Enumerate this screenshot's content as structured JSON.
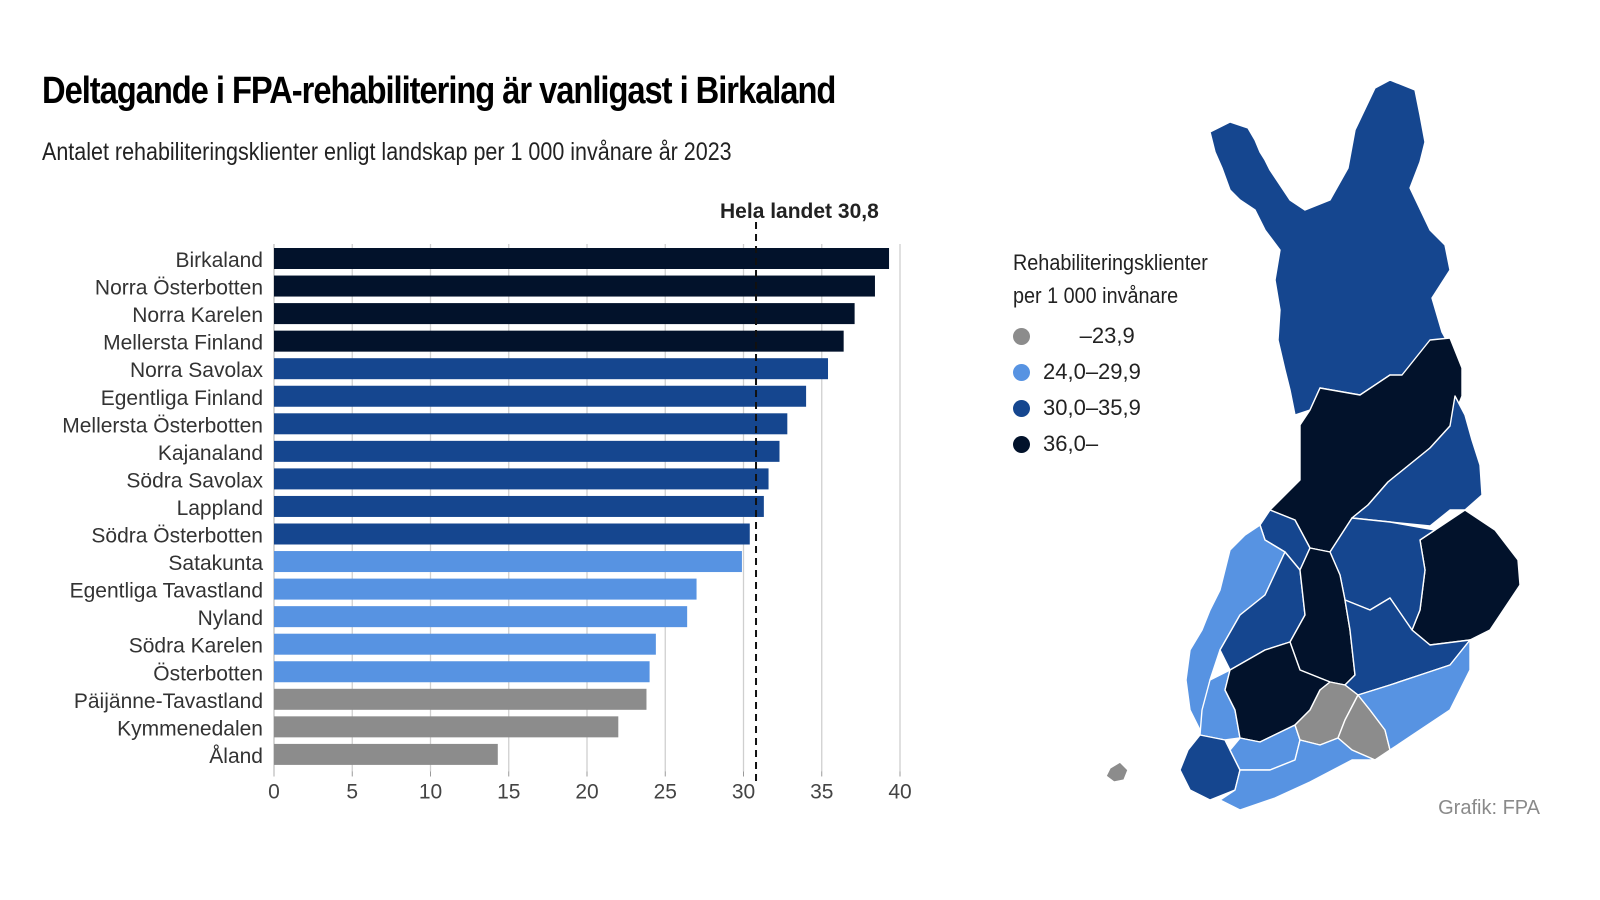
{
  "title": "Deltagande i FPA-rehabilitering är vanligast i Birkaland",
  "subtitle": "Antalet rehabiliteringsklienter enligt landskap per 1 000 invånare år 2023",
  "credit": "Grafik: FPA",
  "colors": {
    "class_low": "#8c8c8c",
    "class_mid": "#5793e2",
    "class_high": "#15468f",
    "class_top": "#02122b"
  },
  "legend": {
    "title_line1": "Rehabiliteringsklienter",
    "title_line2": "per 1 000  invånare",
    "items": [
      {
        "label": "      –23,9",
        "color_key": "class_low"
      },
      {
        "label": "24,0–29,9",
        "color_key": "class_mid"
      },
      {
        "label": "30,0–35,9",
        "color_key": "class_high"
      },
      {
        "label": "36,0–",
        "color_key": "class_top"
      }
    ]
  },
  "chart_data": {
    "type": "bar",
    "orientation": "horizontal",
    "title": "Deltagande i FPA-rehabilitering är vanligast i Birkaland",
    "subtitle": "Antalet rehabiliteringsklienter enligt landskap per 1 000 invånare år 2023",
    "xlabel": "",
    "ylabel": "",
    "xlim": [
      0,
      40
    ],
    "xticks": [
      0,
      5,
      10,
      15,
      20,
      25,
      30,
      35,
      40
    ],
    "grid": true,
    "reference_line": {
      "value": 30.8,
      "label": "Hela landet 30,8",
      "style": "dashed"
    },
    "categories": [
      "Birkaland",
      "Norra Österbotten",
      "Norra Karelen",
      "Mellersta Finland",
      "Norra Savolax",
      "Egentliga Finland",
      "Mellersta Österbotten",
      "Kajanaland",
      "Södra Savolax",
      "Lappland",
      "Södra Österbotten",
      "Satakunta",
      "Egentliga Tavastland",
      "Nyland",
      "Södra Karelen",
      "Österbotten",
      "Päijänne-Tavastland",
      "Kymmenedalen",
      "Åland"
    ],
    "values": [
      39.3,
      38.4,
      37.1,
      36.4,
      35.4,
      34.0,
      32.8,
      32.3,
      31.6,
      31.3,
      30.4,
      29.9,
      27.0,
      26.4,
      24.4,
      24.0,
      23.8,
      22.0,
      14.3
    ],
    "class_keys": [
      "class_top",
      "class_top",
      "class_top",
      "class_top",
      "class_high",
      "class_high",
      "class_high",
      "class_high",
      "class_high",
      "class_high",
      "class_high",
      "class_mid",
      "class_mid",
      "class_mid",
      "class_mid",
      "class_mid",
      "class_low",
      "class_low",
      "class_low"
    ]
  }
}
